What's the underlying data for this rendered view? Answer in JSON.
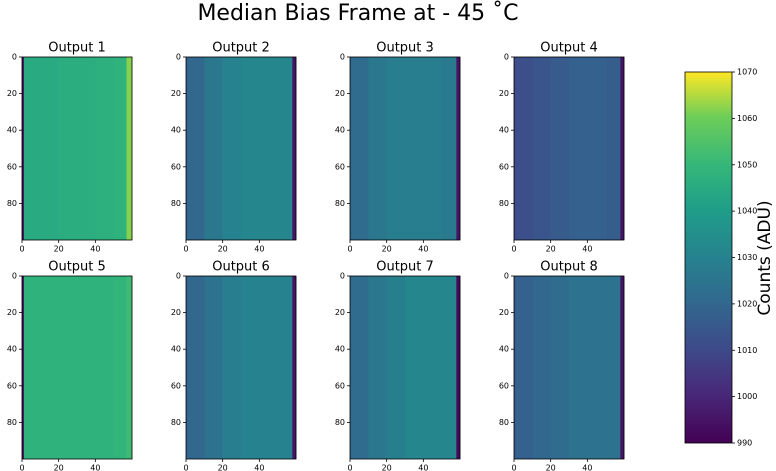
{
  "title": "Median Bias Frame at - 45 ˚C",
  "chart_data": [
    {
      "type": "heatmap",
      "title": "Output 1",
      "x_edges": [
        0,
        1,
        10,
        20,
        30,
        40,
        50,
        57,
        60
      ],
      "values": [
        990,
        1045,
        1045,
        1046,
        1046,
        1047,
        1048,
        1062
      ],
      "xlim": [
        0,
        60
      ],
      "ylim": [
        100,
        0
      ],
      "xticks": [
        0,
        20,
        40
      ],
      "yticks": [
        0,
        20,
        40,
        60,
        80
      ]
    },
    {
      "type": "heatmap",
      "title": "Output 2",
      "x_edges": [
        0,
        1,
        10,
        20,
        30,
        40,
        50,
        58,
        60
      ],
      "values": [
        1018,
        1020,
        1026,
        1030,
        1032,
        1032,
        1032,
        995
      ],
      "xlim": [
        0,
        60
      ],
      "ylim": [
        100,
        0
      ],
      "xticks": [
        0,
        20,
        40
      ],
      "yticks": [
        0,
        20,
        40,
        60,
        80
      ]
    },
    {
      "type": "heatmap",
      "title": "Output 3",
      "x_edges": [
        0,
        1,
        10,
        20,
        30,
        40,
        50,
        58,
        60
      ],
      "values": [
        1020,
        1022,
        1026,
        1028,
        1028,
        1028,
        1027,
        995
      ],
      "xlim": [
        0,
        60
      ],
      "ylim": [
        100,
        0
      ],
      "xticks": [
        0,
        20,
        40
      ],
      "yticks": [
        0,
        20,
        40,
        60,
        80
      ]
    },
    {
      "type": "heatmap",
      "title": "Output 4",
      "x_edges": [
        0,
        1,
        10,
        20,
        30,
        40,
        50,
        58,
        60
      ],
      "values": [
        1010,
        1012,
        1014,
        1016,
        1018,
        1018,
        1017,
        995
      ],
      "xlim": [
        0,
        60
      ],
      "ylim": [
        100,
        0
      ],
      "xticks": [
        0,
        20,
        40
      ],
      "yticks": [
        0,
        20,
        40,
        60,
        80
      ]
    },
    {
      "type": "heatmap",
      "title": "Output 5",
      "x_edges": [
        0,
        1,
        10,
        20,
        30,
        40,
        50,
        57,
        60
      ],
      "values": [
        990,
        1048,
        1048,
        1048,
        1048,
        1048,
        1049,
        1052
      ],
      "xlim": [
        0,
        60
      ],
      "ylim": [
        100,
        0
      ],
      "xticks": [
        0,
        20,
        40
      ],
      "yticks": [
        0,
        20,
        40,
        60,
        80
      ]
    },
    {
      "type": "heatmap",
      "title": "Output 6",
      "x_edges": [
        0,
        1,
        10,
        20,
        30,
        40,
        50,
        58,
        60
      ],
      "values": [
        1018,
        1020,
        1024,
        1028,
        1030,
        1030,
        1030,
        995
      ],
      "xlim": [
        0,
        60
      ],
      "ylim": [
        100,
        0
      ],
      "xticks": [
        0,
        20,
        40
      ],
      "yticks": [
        0,
        20,
        40,
        60,
        80
      ]
    },
    {
      "type": "heatmap",
      "title": "Output 7",
      "x_edges": [
        0,
        1,
        10,
        20,
        30,
        40,
        50,
        58,
        60
      ],
      "values": [
        1020,
        1022,
        1026,
        1029,
        1032,
        1032,
        1032,
        992
      ],
      "xlim": [
        0,
        60
      ],
      "ylim": [
        100,
        0
      ],
      "xticks": [
        0,
        20,
        40
      ],
      "yticks": [
        0,
        20,
        40,
        60,
        80
      ]
    },
    {
      "type": "heatmap",
      "title": "Output 8",
      "x_edges": [
        0,
        1,
        10,
        20,
        30,
        40,
        50,
        58,
        60
      ],
      "values": [
        1016,
        1018,
        1020,
        1022,
        1024,
        1024,
        1024,
        995
      ],
      "xlim": [
        0,
        60
      ],
      "ylim": [
        100,
        0
      ],
      "xticks": [
        0,
        20,
        40
      ],
      "yticks": [
        0,
        20,
        40,
        60,
        80
      ]
    }
  ],
  "colorbar": {
    "label": "Counts (ADU)",
    "clim": [
      990,
      1070
    ],
    "ticks": [
      990,
      1000,
      1010,
      1020,
      1030,
      1040,
      1050,
      1060,
      1070
    ]
  }
}
